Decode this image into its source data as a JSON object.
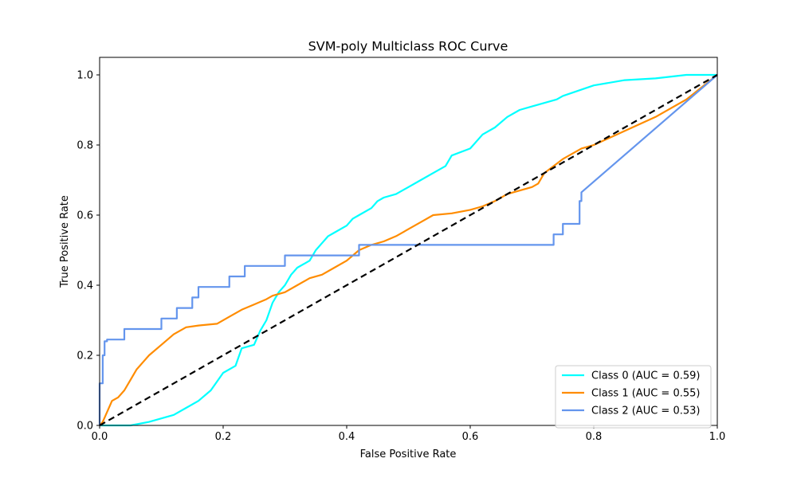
{
  "chart_data": {
    "type": "line",
    "title": "SVM-poly Multiclass ROC Curve",
    "xlabel": "False Positive Rate",
    "ylabel": "True Positive Rate",
    "xlim": [
      0,
      1.0
    ],
    "ylim": [
      0,
      1.05
    ],
    "xticks": [
      0.0,
      0.2,
      0.4,
      0.6,
      0.8,
      1.0
    ],
    "yticks": [
      0.0,
      0.2,
      0.4,
      0.6,
      0.8,
      1.0
    ],
    "tick_labels_x": [
      "0.0",
      "0.2",
      "0.4",
      "0.6",
      "0.8",
      "1.0"
    ],
    "tick_labels_y": [
      "0.0",
      "0.2",
      "0.4",
      "0.6",
      "0.8",
      "1.0"
    ],
    "grid": false,
    "legend_position": "bottom-right",
    "series": [
      {
        "name": "Class 0 (AUC = 0.59)",
        "color": "#00ffff",
        "x": [
          0.0,
          0.05,
          0.08,
          0.1,
          0.12,
          0.14,
          0.16,
          0.18,
          0.2,
          0.22,
          0.23,
          0.25,
          0.26,
          0.27,
          0.28,
          0.29,
          0.3,
          0.31,
          0.32,
          0.34,
          0.35,
          0.36,
          0.37,
          0.38,
          0.4,
          0.41,
          0.42,
          0.44,
          0.45,
          0.46,
          0.48,
          0.5,
          0.52,
          0.54,
          0.56,
          0.57,
          0.6,
          0.62,
          0.64,
          0.66,
          0.68,
          0.7,
          0.72,
          0.74,
          0.75,
          0.8,
          0.85,
          0.9,
          0.95,
          1.0
        ],
        "y": [
          0.0,
          0.0,
          0.01,
          0.02,
          0.03,
          0.05,
          0.07,
          0.1,
          0.15,
          0.17,
          0.22,
          0.23,
          0.27,
          0.3,
          0.35,
          0.38,
          0.4,
          0.43,
          0.45,
          0.47,
          0.5,
          0.52,
          0.54,
          0.55,
          0.57,
          0.59,
          0.6,
          0.62,
          0.64,
          0.65,
          0.66,
          0.68,
          0.7,
          0.72,
          0.74,
          0.77,
          0.79,
          0.83,
          0.85,
          0.88,
          0.9,
          0.91,
          0.92,
          0.93,
          0.94,
          0.97,
          0.985,
          0.99,
          1.0,
          1.0
        ]
      },
      {
        "name": "Class 1 (AUC = 0.55)",
        "color": "#ff8c00",
        "x": [
          0.0,
          0.005,
          0.01,
          0.02,
          0.03,
          0.04,
          0.05,
          0.06,
          0.07,
          0.08,
          0.1,
          0.12,
          0.14,
          0.16,
          0.19,
          0.21,
          0.23,
          0.25,
          0.27,
          0.28,
          0.3,
          0.32,
          0.34,
          0.36,
          0.38,
          0.4,
          0.42,
          0.44,
          0.46,
          0.48,
          0.5,
          0.52,
          0.54,
          0.57,
          0.6,
          0.62,
          0.64,
          0.66,
          0.68,
          0.7,
          0.71,
          0.72,
          0.75,
          0.78,
          0.8,
          0.85,
          0.9,
          0.95,
          1.0
        ],
        "y": [
          0.0,
          0.01,
          0.03,
          0.07,
          0.08,
          0.1,
          0.13,
          0.16,
          0.18,
          0.2,
          0.23,
          0.26,
          0.28,
          0.285,
          0.29,
          0.31,
          0.33,
          0.345,
          0.36,
          0.37,
          0.38,
          0.4,
          0.42,
          0.43,
          0.45,
          0.47,
          0.5,
          0.515,
          0.525,
          0.54,
          0.56,
          0.58,
          0.6,
          0.605,
          0.615,
          0.625,
          0.64,
          0.66,
          0.67,
          0.68,
          0.69,
          0.72,
          0.76,
          0.79,
          0.8,
          0.84,
          0.88,
          0.93,
          1.0
        ]
      },
      {
        "name": "Class 2 (AUC = 0.53)",
        "color": "#6495ed",
        "x": [
          0.0,
          0.0,
          0.005,
          0.005,
          0.008,
          0.008,
          0.012,
          0.012,
          0.04,
          0.04,
          0.1,
          0.1,
          0.125,
          0.125,
          0.15,
          0.15,
          0.16,
          0.16,
          0.21,
          0.21,
          0.235,
          0.235,
          0.3,
          0.3,
          0.42,
          0.42,
          0.735,
          0.735,
          0.75,
          0.75,
          0.777,
          0.777,
          0.78,
          0.78,
          1.0
        ],
        "y": [
          0.0,
          0.12,
          0.12,
          0.2,
          0.2,
          0.24,
          0.24,
          0.245,
          0.245,
          0.275,
          0.275,
          0.305,
          0.305,
          0.335,
          0.335,
          0.365,
          0.365,
          0.395,
          0.395,
          0.425,
          0.425,
          0.455,
          0.455,
          0.485,
          0.485,
          0.515,
          0.515,
          0.545,
          0.545,
          0.575,
          0.575,
          0.64,
          0.64,
          0.665,
          1.0
        ]
      },
      {
        "name": "",
        "color": "#000000",
        "dashed": true,
        "x": [
          0.0,
          1.0
        ],
        "y": [
          0.0,
          1.0
        ]
      }
    ]
  }
}
